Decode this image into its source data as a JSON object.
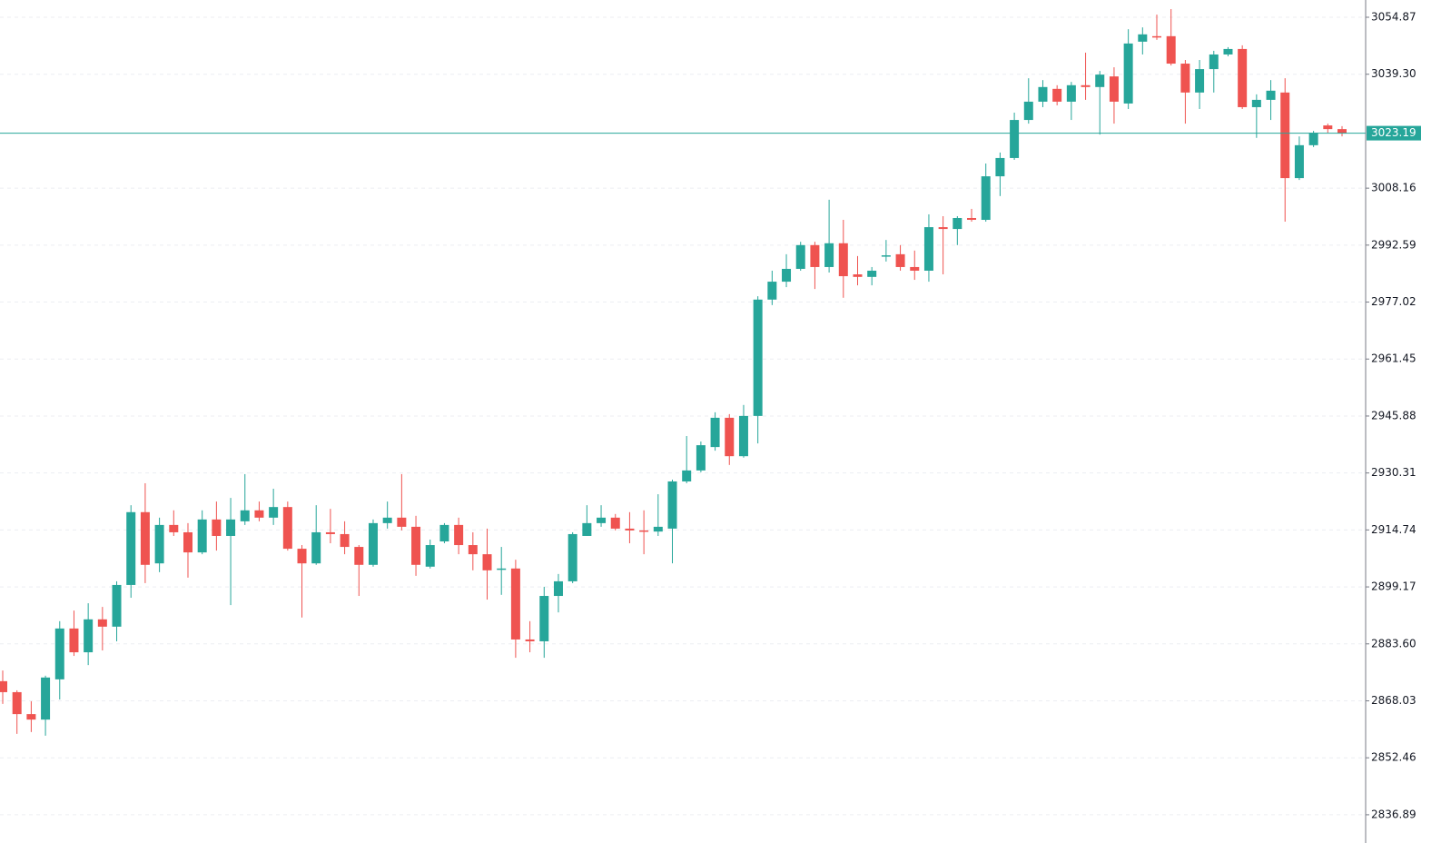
{
  "chart_data": {
    "type": "candlestick",
    "open": [
      2873.4,
      2870.4,
      2864.4,
      2862.9,
      2873.9,
      2887.8,
      2881.3,
      2890.3,
      2888.3,
      2899.7,
      2919.6,
      2905.6,
      2916.1,
      2914.1,
      2908.6,
      2917.6,
      2913.1,
      2917.1,
      2920.1,
      2918.1,
      2921.0,
      2909.6,
      2905.6,
      2914.1,
      2913.6,
      2910.1,
      2905.2,
      2916.6,
      2918.1,
      2915.6,
      2904.7,
      2911.6,
      2916.1,
      2910.6,
      2908.1,
      2903.9,
      2904.2,
      2884.8,
      2884.3,
      2896.7,
      2900.7,
      2913.1,
      2916.6,
      2918.1,
      2915.1,
      2914.6,
      2914.3,
      2915.1,
      2928.0,
      2931.0,
      2937.4,
      2945.4,
      2934.9,
      2945.9,
      2977.7,
      2982.6,
      2986.1,
      2992.6,
      2986.6,
      2993.1,
      2984.6,
      2983.9,
      2989.6,
      2990.1,
      2986.6,
      2985.6,
      2997.5,
      2997.0,
      3000.0,
      2999.5,
      3011.4,
      3016.4,
      3026.8,
      3031.8,
      3035.3,
      3031.8,
      3036.3,
      3035.8,
      3038.7,
      3031.3,
      3048.2,
      3049.7,
      3049.7,
      3042.2,
      3034.3,
      3040.7,
      3044.7,
      3046.2,
      3030.3,
      3032.3,
      3034.3,
      3010.9,
      3019.9,
      3025.3,
      3024.3
    ],
    "high": [
      2876.3,
      2870.9,
      2867.9,
      2874.9,
      2889.8,
      2892.7,
      2894.7,
      2893.7,
      2900.7,
      2921.5,
      2927.5,
      2918.1,
      2920.1,
      2916.6,
      2920.1,
      2922.5,
      2923.5,
      2930.0,
      2922.5,
      2926.0,
      2922.5,
      2910.6,
      2921.5,
      2920.5,
      2917.1,
      2910.6,
      2917.6,
      2922.5,
      2930.0,
      2918.6,
      2912.1,
      2916.6,
      2918.1,
      2914.1,
      2915.1,
      2910.1,
      2906.6,
      2889.8,
      2899.2,
      2902.7,
      2914.1,
      2921.5,
      2921.5,
      2919.1,
      2919.6,
      2920.1,
      2924.5,
      2928.5,
      2940.4,
      2938.9,
      2946.9,
      2946.4,
      2948.9,
      2978.6,
      2985.6,
      2990.1,
      2993.5,
      2993.5,
      3005.0,
      2999.5,
      2989.6,
      2986.6,
      2994.0,
      2992.6,
      2991.1,
      3001.0,
      3000.5,
      3000.5,
      3002.5,
      3014.9,
      3017.9,
      3028.8,
      3038.2,
      3037.7,
      3036.3,
      3037.2,
      3045.2,
      3040.2,
      3041.2,
      3051.6,
      3052.1,
      3055.6,
      3057.1,
      3043.2,
      3043.2,
      3045.7,
      3046.7,
      3047.2,
      3033.8,
      3037.7,
      3038.2,
      3022.3,
      3023.8,
      3025.8,
      3025.1
    ],
    "low": [
      2867.2,
      2859.0,
      2859.5,
      2858.5,
      2868.4,
      2880.3,
      2877.8,
      2881.8,
      2884.3,
      2896.2,
      2900.2,
      2903.2,
      2913.1,
      2901.7,
      2908.1,
      2909.1,
      2894.2,
      2916.1,
      2917.1,
      2916.1,
      2909.1,
      2890.8,
      2905.2,
      2911.1,
      2908.1,
      2896.7,
      2904.7,
      2915.1,
      2914.6,
      2902.2,
      2904.2,
      2911.1,
      2908.1,
      2903.7,
      2895.7,
      2897.0,
      2879.8,
      2881.3,
      2879.8,
      2892.2,
      2900.2,
      2913.1,
      2915.6,
      2914.6,
      2911.1,
      2908.1,
      2913.1,
      2905.6,
      2927.5,
      2930.5,
      2936.4,
      2932.5,
      2934.5,
      2938.4,
      2976.2,
      2981.1,
      2985.6,
      2980.6,
      2985.1,
      2978.2,
      2981.6,
      2981.6,
      2988.1,
      2985.6,
      2983.1,
      2982.6,
      2984.6,
      2992.6,
      2999.0,
      2999.0,
      3006.0,
      3015.9,
      3025.8,
      3030.3,
      3030.8,
      3026.8,
      3032.3,
      3022.8,
      3025.8,
      3029.8,
      3044.7,
      3048.7,
      3041.7,
      3025.8,
      3029.8,
      3034.3,
      3044.2,
      3029.8,
      3021.9,
      3026.8,
      2999.0,
      3010.4,
      3019.4,
      3023.3,
      3022.3
    ],
    "close": [
      2870.4,
      2864.4,
      2862.9,
      2874.4,
      2887.8,
      2881.3,
      2890.3,
      2888.3,
      2899.7,
      2919.6,
      2905.2,
      2916.1,
      2914.1,
      2908.6,
      2917.6,
      2913.1,
      2917.6,
      2920.1,
      2918.1,
      2921.0,
      2909.6,
      2905.6,
      2914.1,
      2913.6,
      2910.1,
      2905.2,
      2916.6,
      2918.1,
      2915.6,
      2905.2,
      2910.6,
      2916.1,
      2910.6,
      2908.1,
      2903.7,
      2904.2,
      2884.8,
      2884.3,
      2896.7,
      2900.7,
      2913.6,
      2916.6,
      2918.1,
      2915.1,
      2914.6,
      2914.3,
      2915.6,
      2928.0,
      2931.0,
      2937.9,
      2945.4,
      2934.9,
      2945.9,
      2977.7,
      2982.6,
      2986.1,
      2992.6,
      2986.6,
      2993.1,
      2984.1,
      2983.9,
      2985.6,
      2989.8,
      2986.6,
      2985.6,
      2997.5,
      2997.0,
      3000.0,
      2999.5,
      3011.4,
      3016.4,
      3026.8,
      3031.8,
      3035.8,
      3031.8,
      3036.3,
      3035.8,
      3039.2,
      3031.8,
      3047.7,
      3050.2,
      3049.6,
      3042.2,
      3034.3,
      3040.7,
      3044.7,
      3046.2,
      3030.3,
      3032.3,
      3034.8,
      3010.9,
      3019.9,
      3023.3,
      3024.3,
      3023.19
    ],
    "up_color": "#26a69a",
    "down_color": "#ef5350",
    "last_price": 3023.19,
    "last_price_color": "#26a69a",
    "ylim": [
      2833.39,
      3059.59
    ],
    "yticks": [
      2836.89,
      2852.46,
      2868.03,
      {
        "value": 2883.6,
        "label": "2883.60"
      },
      2899.17,
      2914.74,
      2930.31,
      2945.88,
      2961.45,
      2977.02,
      2992.59,
      3008.16,
      {
        "value": 3039.3,
        "label": "3039.30"
      },
      3054.87
    ],
    "grid": true
  }
}
